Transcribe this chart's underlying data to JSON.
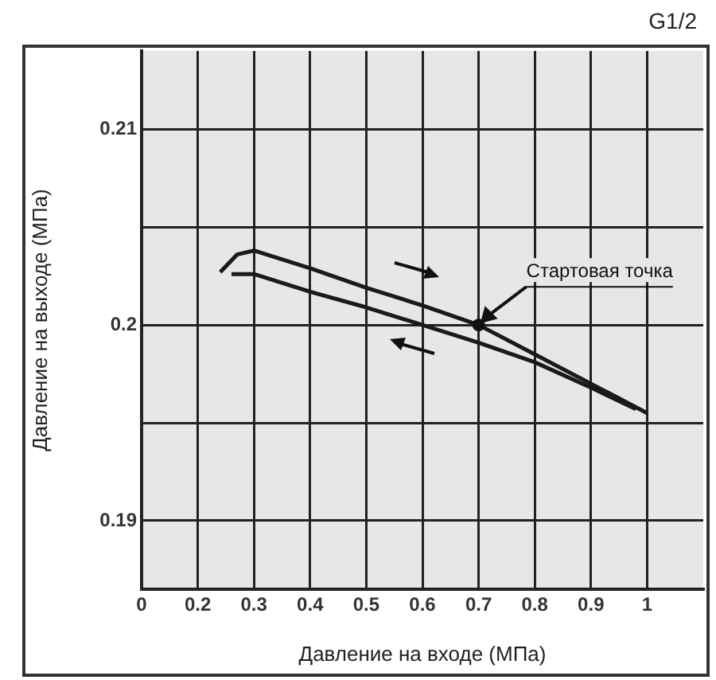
{
  "chart_data": {
    "type": "line",
    "subtitle": "G1/2",
    "xlabel": "Давление на входе (МПа)",
    "ylabel": "Давление на выходе (МПа)",
    "annotations": [
      {
        "text": "Стартовая точка",
        "x": 0.7,
        "y": 0.2
      }
    ],
    "series": [
      {
        "color": "#1a1a1a",
        "x": [
          0.24,
          0.27,
          0.3,
          0.4,
          0.5,
          0.6,
          0.7,
          0.8,
          0.9,
          1.0
        ],
        "values": [
          0.2027,
          0.2036,
          0.2038,
          0.2029,
          0.2019,
          0.201,
          0.2,
          0.1985,
          0.197,
          0.1955
        ]
      },
      {
        "color": "#1a1a1a",
        "x": [
          0.26,
          0.3,
          0.4,
          0.5,
          0.6,
          0.7,
          0.8,
          0.9,
          0.98
        ],
        "values": [
          0.2026,
          0.2026,
          0.2017,
          0.2009,
          0.2,
          0.1991,
          0.1981,
          0.1968,
          0.1957
        ]
      }
    ],
    "xlim": [
      0.1,
      1.1
    ],
    "xticks": [
      {
        "value": 0.1,
        "label": "0"
      },
      0.2,
      0.3,
      0.4,
      0.5,
      0.6,
      0.7,
      0.8,
      0.9,
      1.0
    ],
    "ylim": [
      0.1865,
      0.214
    ],
    "yticks": [
      0.19,
      {
        "value": 0.195,
        "label": null
      },
      0.2,
      {
        "value": 0.205,
        "label": null
      },
      0.21
    ],
    "grid": true,
    "marker": "none",
    "line_style": "solid"
  }
}
